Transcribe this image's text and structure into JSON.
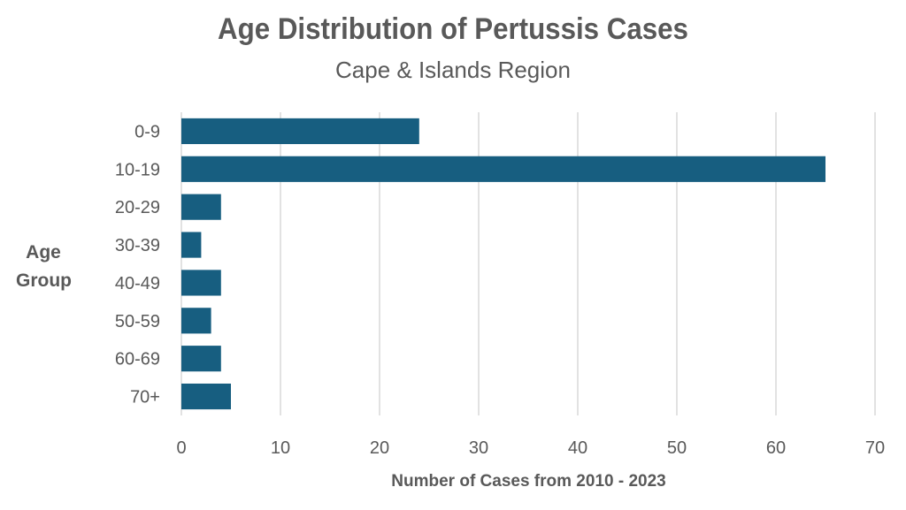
{
  "chart_data": {
    "type": "bar",
    "orientation": "horizontal",
    "title": "Age Distribution of Pertussis Cases",
    "subtitle": "Cape & Islands Region",
    "xlabel": "Number of Cases from 2010 - 2023",
    "ylabel": "Age Group",
    "categories": [
      "0-9",
      "10-19",
      "20-29",
      "30-39",
      "40-49",
      "50-59",
      "60-69",
      "70+"
    ],
    "values": [
      24,
      65,
      4,
      2,
      4,
      3,
      4,
      5
    ],
    "xlim": [
      0,
      70
    ],
    "xticks": [
      0,
      10,
      20,
      30,
      40,
      50,
      60,
      70
    ],
    "grid": "vertical",
    "legend": "none",
    "bar_color": "#175e80",
    "grid_color": "#d9d9d9",
    "text_color": "#595959"
  }
}
